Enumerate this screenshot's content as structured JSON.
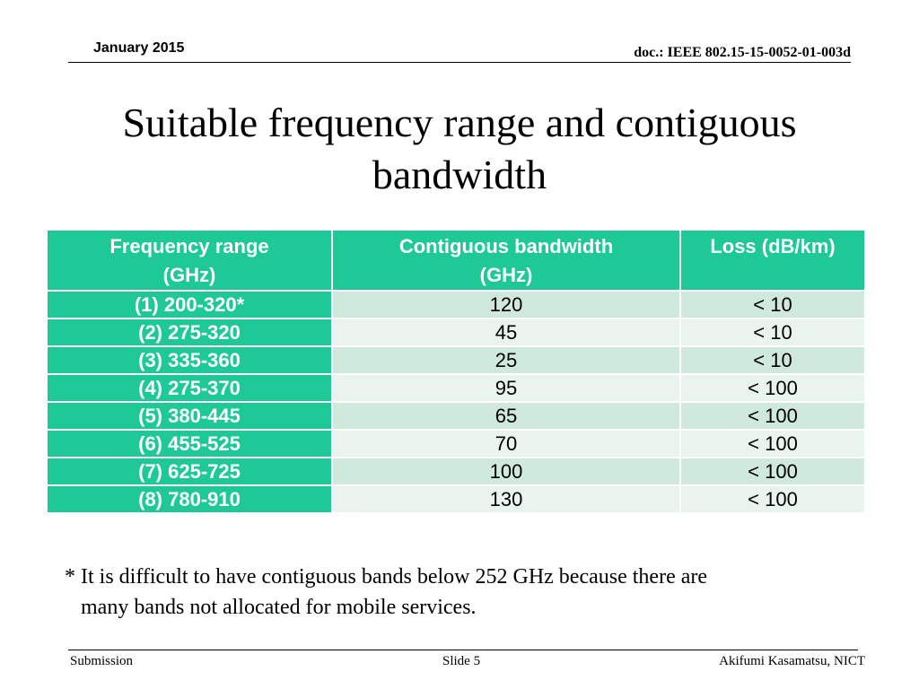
{
  "header": {
    "date": "January 2015",
    "doc_id": "doc.: IEEE 802.15-15-0052-01-003d"
  },
  "title": {
    "line1": "Suitable frequency range and contiguous",
    "line2": "bandwidth"
  },
  "table": {
    "headers": [
      [
        "Frequency range",
        "(GHz)"
      ],
      [
        "Contiguous bandwidth",
        "(GHz)"
      ],
      [
        "Loss (dB/km)",
        ""
      ]
    ],
    "rows": [
      [
        "(1) 200-320*",
        "120",
        "< 10"
      ],
      [
        "(2) 275-320",
        "45",
        "< 10"
      ],
      [
        "(3) 335-360",
        "25",
        "< 10"
      ],
      [
        "(4) 275-370",
        "95",
        "< 100"
      ],
      [
        "(5) 380-445",
        "65",
        "< 100"
      ],
      [
        "(6) 455-525",
        "70",
        "< 100"
      ],
      [
        "(7) 625-725",
        "100",
        "< 100"
      ],
      [
        "(8) 780-910",
        "130",
        "< 100"
      ]
    ]
  },
  "footnote": {
    "line1": "* It is difficult to have contiguous bands below 252 GHz because there are",
    "line2": "many bands  not allocated for mobile services."
  },
  "footer": {
    "left": "Submission",
    "center": "Slide 5",
    "right": "Akifumi Kasamatsu, NICT"
  },
  "colors": {
    "header_green": "#1fc997",
    "row_light": "#e9f4ef",
    "row_mid": "#cfe9dd"
  }
}
